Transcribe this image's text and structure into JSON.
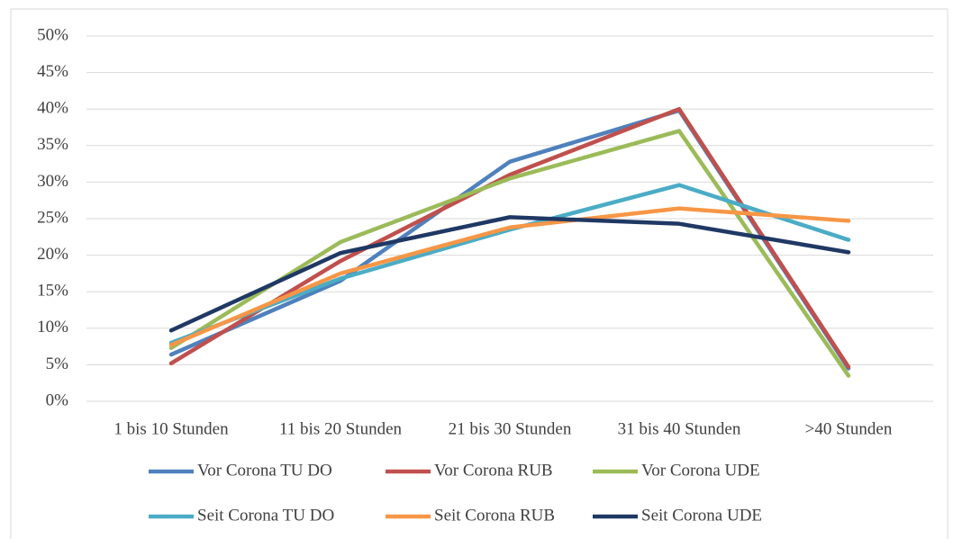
{
  "chart_data": {
    "type": "line",
    "categories": [
      "1 bis 10 Stunden",
      "11 bis 20 Stunden",
      "21 bis 30 Stunden",
      "31 bis 40 Stunden",
      ">40 Stunden"
    ],
    "series": [
      {
        "name": "Vor Corona TU DO",
        "color": "#4f81bd",
        "values": [
          6.4,
          16.5,
          32.8,
          39.8,
          4.5
        ]
      },
      {
        "name": "Vor Corona RUB",
        "color": "#c0504d",
        "values": [
          5.2,
          19.2,
          31.0,
          40.0,
          4.7
        ]
      },
      {
        "name": "Vor Corona UDE",
        "color": "#9bbb59",
        "values": [
          7.3,
          21.8,
          30.5,
          37.0,
          3.5
        ]
      },
      {
        "name": "Seit Corona TU DO",
        "color": "#4bacc6",
        "values": [
          8.0,
          16.8,
          23.5,
          29.6,
          22.1
        ]
      },
      {
        "name": "Seit Corona RUB",
        "color": "#f79646",
        "values": [
          7.7,
          17.5,
          23.8,
          26.4,
          24.7
        ]
      },
      {
        "name": "Seit Corona UDE",
        "color": "#1f3864",
        "values": [
          9.7,
          20.3,
          25.2,
          24.3,
          20.4
        ]
      }
    ],
    "ylim": [
      0,
      50
    ],
    "yticks": [
      {
        "value": 0,
        "label": "0%"
      },
      {
        "value": 5,
        "label": "5%"
      },
      {
        "value": 10,
        "label": "10%"
      },
      {
        "value": 15,
        "label": "15%"
      },
      {
        "value": 20,
        "label": "20%"
      },
      {
        "value": 25,
        "label": "25%"
      },
      {
        "value": 30,
        "label": "30%"
      },
      {
        "value": 35,
        "label": "35%"
      },
      {
        "value": 40,
        "label": "40%"
      },
      {
        "value": 45,
        "label": "45%"
      },
      {
        "value": 50,
        "label": "50%"
      }
    ],
    "grid": true,
    "legend": "bottom"
  }
}
